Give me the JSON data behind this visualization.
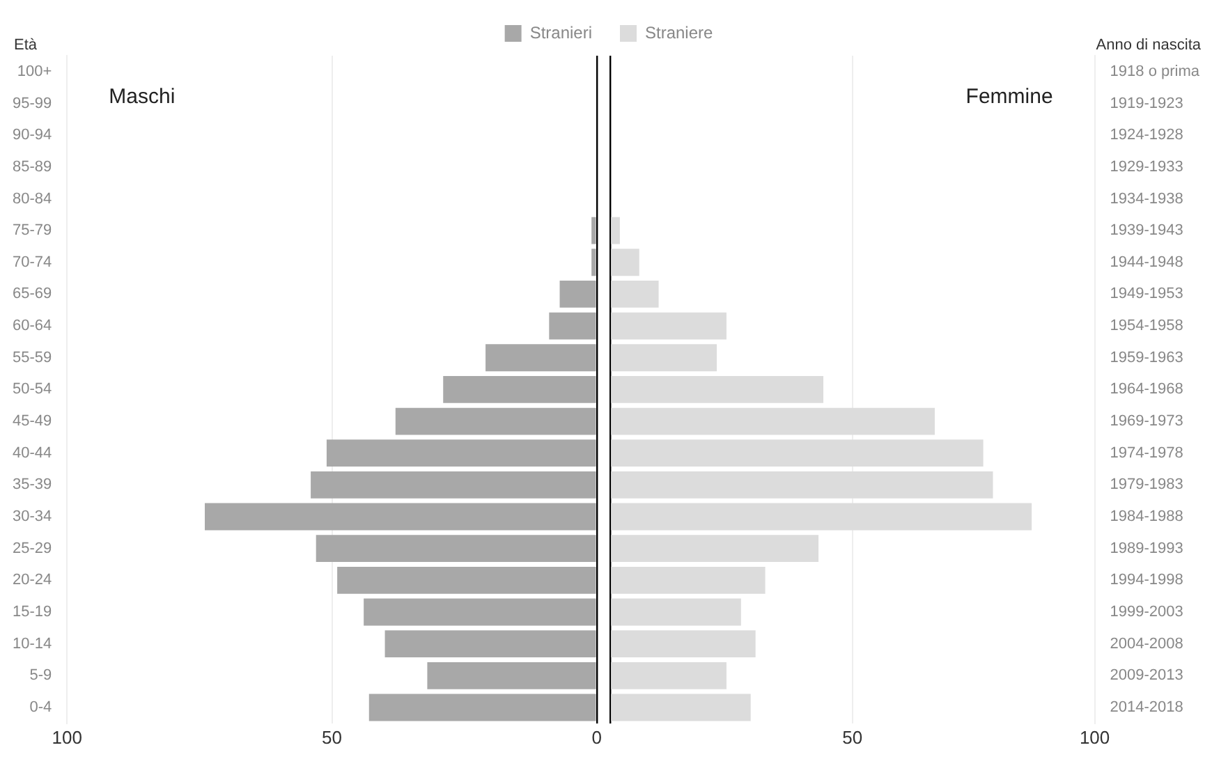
{
  "chart_data": [
    {
      "type": "bar",
      "orientation": "horizontal",
      "ylabel": "Età",
      "categories": [
        "100+",
        "95-99",
        "90-94",
        "85-89",
        "80-84",
        "75-79",
        "70-74",
        "65-69",
        "60-64",
        "55-59",
        "50-54",
        "45-49",
        "40-44",
        "35-39",
        "30-34",
        "25-29",
        "20-24",
        "15-19",
        "10-14",
        "5-9",
        "0-4"
      ],
      "series": [
        {
          "name": "Stranieri",
          "color": "#a8a8a8",
          "values": [
            0,
            0,
            0,
            0,
            0,
            1,
            1,
            7,
            9,
            21,
            29,
            38,
            51,
            54,
            74,
            53,
            49,
            44,
            40,
            32,
            43
          ]
        }
      ],
      "xlim": [
        100,
        0
      ],
      "xticks": [
        100,
        50,
        0
      ],
      "annotations": [
        "Maschi"
      ],
      "grid": "x",
      "legend": "top"
    },
    {
      "type": "bar",
      "orientation": "horizontal",
      "ylabel": "Anno di nascita",
      "categories": [
        "1918 o prima",
        "1919-1923",
        "1924-1928",
        "1929-1933",
        "1934-1938",
        "1939-1943",
        "1944-1948",
        "1949-1953",
        "1954-1958",
        "1959-1963",
        "1964-1968",
        "1969-1973",
        "1974-1978",
        "1979-1983",
        "1984-1988",
        "1989-1993",
        "1994-1998",
        "1999-2003",
        "2004-2008",
        "2009-2013",
        "2014-2018"
      ],
      "series": [
        {
          "name": "Straniere",
          "color": "#dcdcdc",
          "values": [
            0,
            0,
            0,
            0,
            0,
            2,
            6,
            10,
            24,
            22,
            44,
            67,
            77,
            79,
            87,
            43,
            32,
            27,
            30,
            24,
            29
          ]
        }
      ],
      "xlim": [
        0,
        100
      ],
      "xticks": [
        {
          "value": 0,
          "label": null
        },
        50,
        100
      ],
      "annotations": [
        "Femmine"
      ],
      "grid": "x",
      "legend": "top"
    }
  ]
}
